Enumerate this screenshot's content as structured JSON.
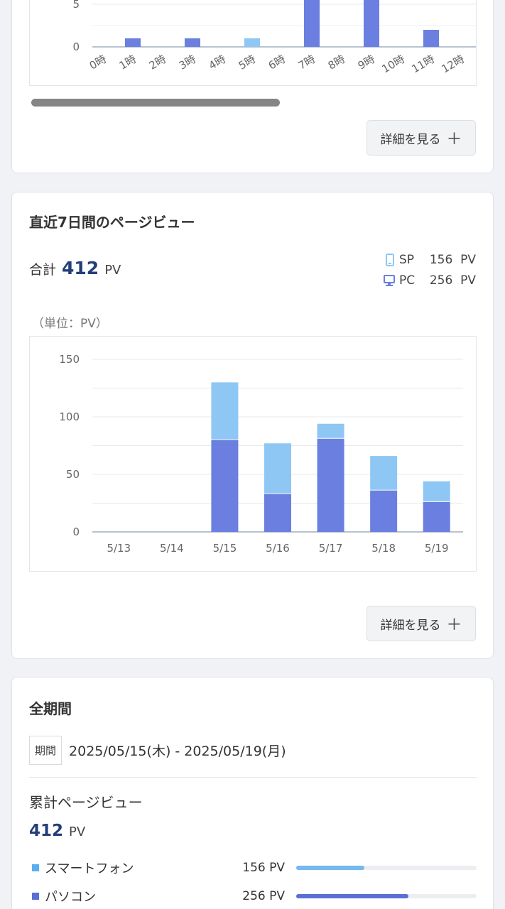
{
  "colors": {
    "pc": "#6a7fe0",
    "sp": "#8ec7f3",
    "accent": "#233e7a"
  },
  "hourly_chart": {
    "chart_data": {
      "type": "bar",
      "categories": [
        "0時",
        "1時",
        "2時",
        "3時",
        "4時",
        "5時",
        "6時",
        "7時",
        "8時",
        "9時",
        "10時",
        "11時",
        "12時"
      ],
      "series": [
        {
          "name": "PC",
          "values": [
            0,
            1,
            0,
            1,
            0,
            0,
            0,
            6,
            0,
            6,
            0,
            2,
            0
          ]
        },
        {
          "name": "SP",
          "values": [
            0,
            0,
            0,
            0,
            0,
            1,
            0,
            0,
            0,
            0,
            0,
            0,
            0
          ]
        }
      ],
      "yticks": [
        "0",
        "5"
      ]
    },
    "detail_label": "詳細を見る"
  },
  "weekly": {
    "title": "直近7日間のページビュー",
    "total_label": "合計",
    "total_value": "412",
    "total_unit": "PV",
    "sp_label": "SP",
    "sp_value": "156",
    "sp_unit": "PV",
    "pc_label": "PC",
    "pc_value": "256",
    "pc_unit": "PV",
    "unit_note": "（単位：PV）",
    "chart_data": {
      "type": "bar",
      "stacked": true,
      "categories": [
        "5/13",
        "5/14",
        "5/15",
        "5/16",
        "5/17",
        "5/18",
        "5/19"
      ],
      "series": [
        {
          "name": "PC",
          "values": [
            0,
            0,
            80,
            33,
            81,
            36,
            26
          ]
        },
        {
          "name": "SP",
          "values": [
            0,
            0,
            50,
            44,
            13,
            30,
            18
          ]
        }
      ],
      "ylim": [
        0,
        150
      ],
      "yticks": [
        "0",
        "50",
        "100",
        "150"
      ],
      "grid": true
    },
    "detail_label": "詳細を見る"
  },
  "all_period": {
    "title": "全期間",
    "period_tag": "期間",
    "period_range": "2025/05/15(木) - 2025/05/19(月)",
    "cumulative_title": "累計ページビュー",
    "cumulative_value": "412",
    "cumulative_unit": "PV",
    "devices": [
      {
        "name": "スマートフォン",
        "count": "156 PV",
        "fraction": 0.379
      },
      {
        "name": "パソコン",
        "count": "256 PV",
        "fraction": 0.621
      }
    ]
  }
}
